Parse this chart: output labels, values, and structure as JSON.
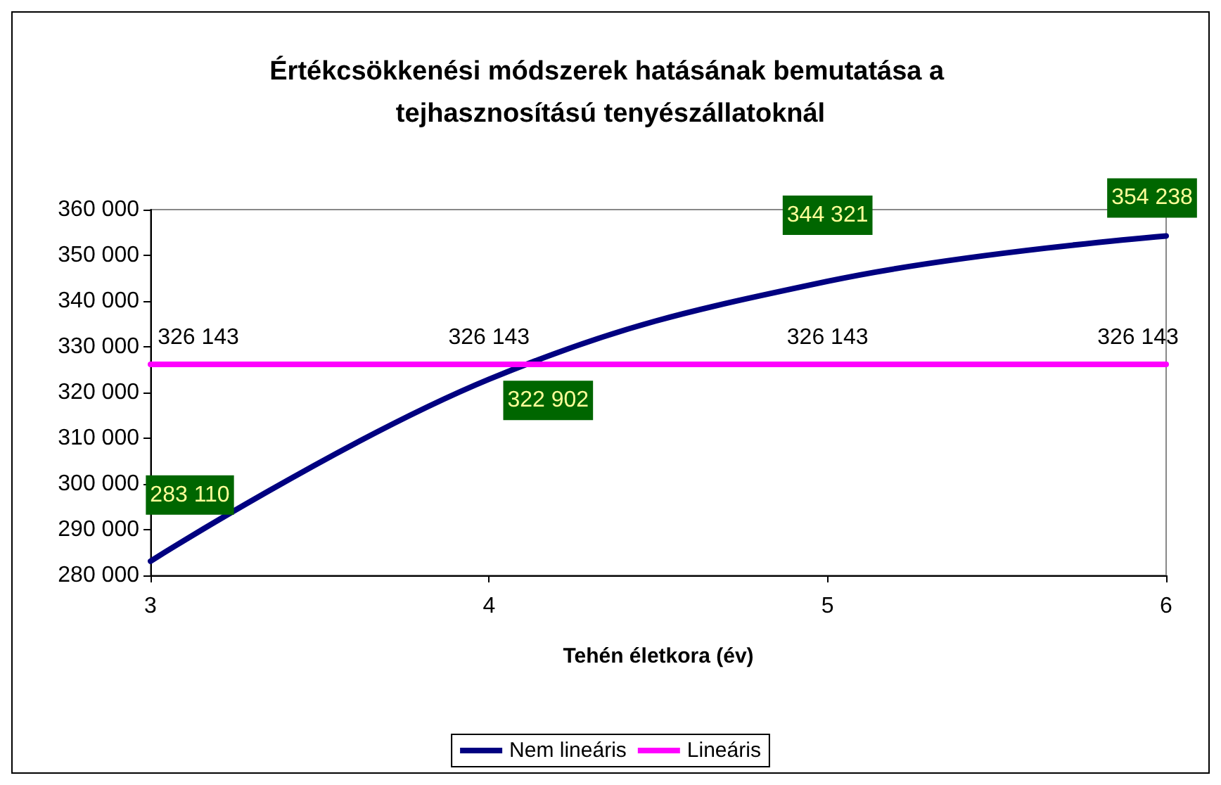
{
  "chart_data": {
    "type": "line",
    "title": "Értékcsökkenési módszerek hatásának bemutatása a tejhasznosítású tenyészállatoknál",
    "xlabel": "Tehén életkora (év)",
    "x": [
      3,
      4,
      5,
      6
    ],
    "series": [
      {
        "name": "Nem lineáris",
        "color": "#000080",
        "values": [
          283110,
          322902,
          344321,
          354238
        ],
        "value_labels": [
          "283 110",
          "322 902",
          "344 321",
          "354 238"
        ]
      },
      {
        "name": "Lineáris",
        "color": "#ff00ff",
        "values": [
          326143,
          326143,
          326143,
          326143
        ],
        "value_labels": [
          "326 143",
          "326 143",
          "326 143",
          "326 143"
        ]
      }
    ],
    "xlim": [
      3,
      6
    ],
    "xticks": [
      3,
      4,
      5,
      6
    ],
    "ylim": [
      280000,
      360000
    ],
    "yticks": [
      {
        "value": 280000,
        "label": "280 000"
      },
      {
        "value": 290000,
        "label": "290 000"
      },
      {
        "value": 300000,
        "label": "300 000"
      },
      {
        "value": 310000,
        "label": "310 000"
      },
      {
        "value": 320000,
        "label": "320 000"
      },
      {
        "value": 330000,
        "label": "330 000"
      },
      {
        "value": 340000,
        "label": "340 000"
      },
      {
        "value": 350000,
        "label": "350 000"
      },
      {
        "value": 360000,
        "label": "360 000"
      }
    ],
    "grid": false,
    "legend": "bottom",
    "marker": "none",
    "line_style": "solid"
  }
}
